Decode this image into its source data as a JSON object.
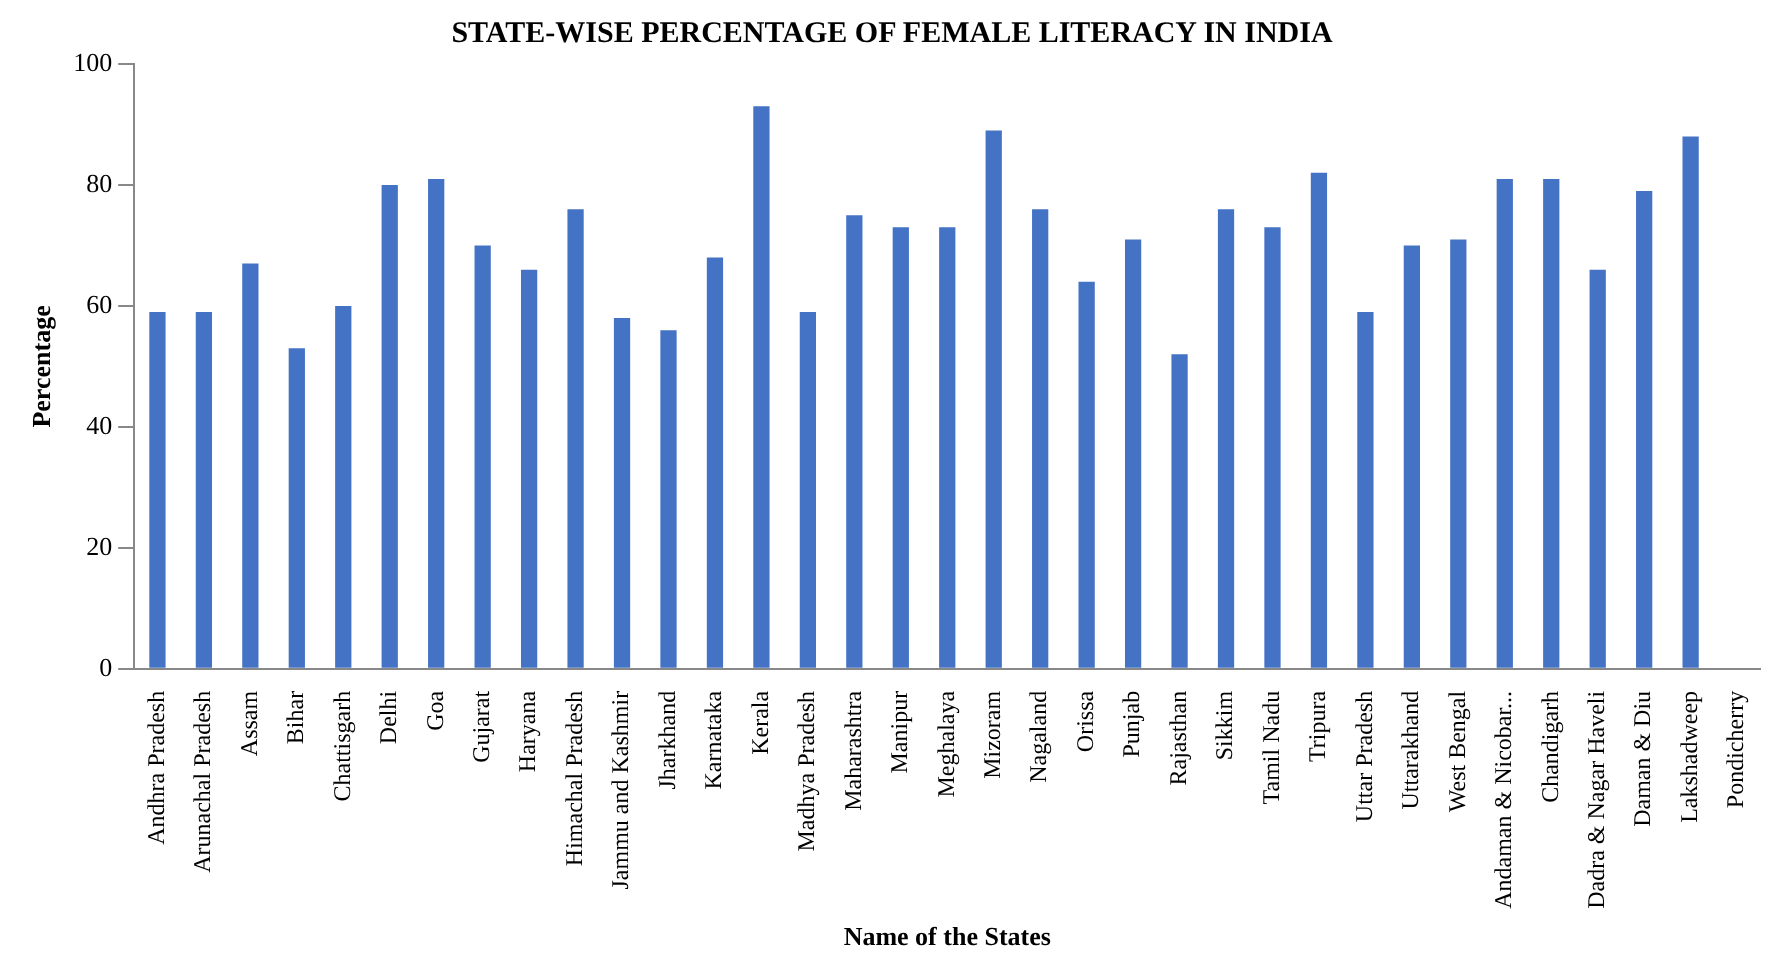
{
  "chart_data": {
    "type": "bar",
    "title": "STATE-WISE PERCENTAGE OF FEMALE LITERACY IN INDIA",
    "xlabel": "Name of the States",
    "ylabel": "Percentage",
    "categories": [
      "Andhra Pradesh",
      "Arunachal Pradesh",
      "Assam",
      "Bihar",
      "Chattisgarh",
      "Delhi",
      "Goa",
      "Gujarat",
      "Haryana",
      "Himachal Pradesh",
      "Jammu and Kashmir",
      "Jharkhand",
      "Karnataka",
      "Kerala",
      "Madhya Pradesh",
      "Maharashtra",
      "Manipur",
      "Meghalaya",
      "Mizoram",
      "Nagaland",
      "Orissa",
      "Punjab",
      "Rajasthan",
      "Sikkim",
      "Tamil Nadu",
      "Tripura",
      "Uttar Pradesh",
      "Uttarakhand",
      "West Bengal",
      "Andaman & Nicobar...",
      "Chandigarh",
      "Dadra & Nagar Haveli",
      "Daman & Diu",
      "Lakshadweep",
      "Pondicherry"
    ],
    "values": [
      59,
      59,
      67,
      53,
      60,
      80,
      81,
      70,
      66,
      76,
      58,
      56,
      68,
      93,
      59,
      75,
      73,
      73,
      89,
      76,
      64,
      71,
      52,
      76,
      73,
      82,
      59,
      70,
      71,
      81,
      81,
      66,
      79,
      88,
      null
    ],
    "color": "#4472c4",
    "ylim": [
      0,
      100
    ],
    "yticks": [
      0,
      20,
      40,
      60,
      80,
      100
    ],
    "grid": false,
    "legend": false
  }
}
